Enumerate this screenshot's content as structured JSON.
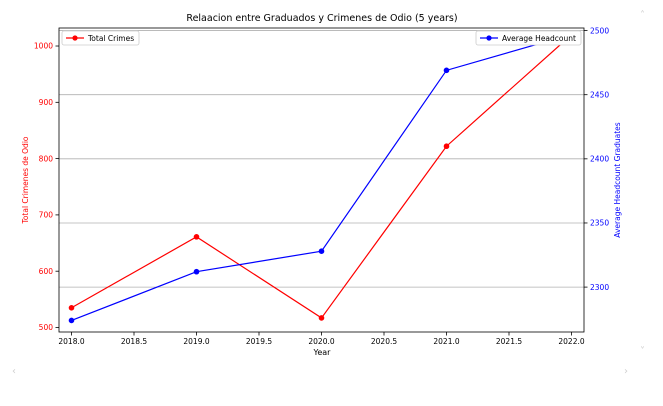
{
  "chart_data": {
    "type": "line",
    "title": "Relaacion entre Graduados y Crimenes de Odio (5 years)",
    "xlabel": "Year",
    "x": [
      2018,
      2019,
      2020,
      2021,
      2022
    ],
    "xlim": [
      2017.9,
      2022.1
    ],
    "xticks": [
      "2018.0",
      "2018.5",
      "2019.0",
      "2019.5",
      "2020.0",
      "2020.5",
      "2021.0",
      "2021.5",
      "2022.0"
    ],
    "y_left": {
      "label": "Total Crimenes de Odio",
      "color": "#ff0000",
      "ylim": [
        492,
        1032
      ],
      "ticks": [
        "500",
        "600",
        "700",
        "800",
        "900",
        "1000"
      ]
    },
    "y_right": {
      "label": "Average Headcount Graduates",
      "color": "#0000ff",
      "ylim": [
        2265,
        2502
      ],
      "ticks": [
        "2300",
        "2350",
        "2400",
        "2450",
        "2500"
      ]
    },
    "grid": "right-axis horizontal lines",
    "series": [
      {
        "name": "Total Crimes",
        "axis": "left",
        "color": "#ff0000",
        "values": [
          535,
          661,
          517,
          822,
          1020
        ]
      },
      {
        "name": "Average Headcount",
        "axis": "right",
        "color": "#0000ff",
        "values": [
          2274,
          2312,
          2328,
          2469,
          2497
        ]
      }
    ],
    "legends": [
      {
        "series": 0,
        "placement": "top-left"
      },
      {
        "series": 1,
        "placement": "top-right"
      }
    ]
  }
}
